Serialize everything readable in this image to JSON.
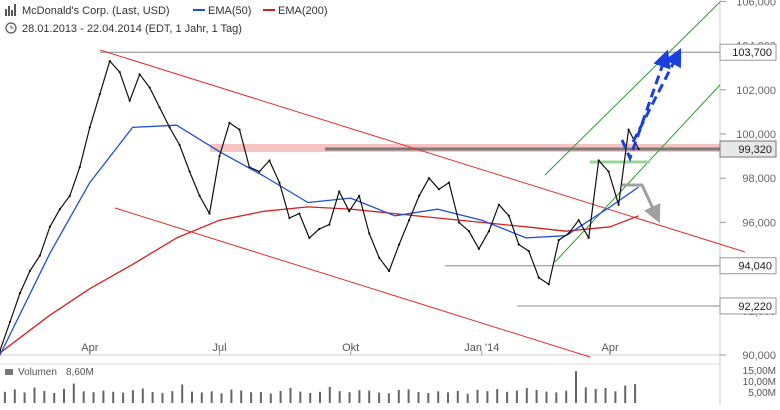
{
  "header": {
    "title": "McDonald's Corp. (Last, USD)",
    "legend": [
      {
        "label": "EMA(50)",
        "color": "#1f4fd8"
      },
      {
        "label": "EMA(200)",
        "color": "#d62020"
      }
    ],
    "date_range": "28.01.2013 - 22.04.2014 (EDT, 1 Jahr, 1 Tag)",
    "volume_label": "Volumen",
    "volume_value": "8,60M"
  },
  "colors": {
    "price": "#111111",
    "ema50": "#1f4fd8",
    "ema200": "#d62020",
    "channel_red": "#e23030",
    "channel_green": "#2e9b2e",
    "resistance_band": "#f4b8b8",
    "support_line": "#8a8a8a",
    "projection_blue": "#1a3fe0",
    "projection_gray": "#a0a0a0",
    "volume": "#666666"
  },
  "chart_data": {
    "type": "line",
    "title": "McDonald's Corp. (Last, USD)",
    "x_tick_labels": [
      "Apr",
      "Jul",
      "Okt",
      "Jan '14",
      "Apr"
    ],
    "y_tick_labels": [
      "90,000",
      "92,000",
      "94,000",
      "96,000",
      "98,000",
      "100,000",
      "102,000",
      "104,000",
      "106,000"
    ],
    "ylim": [
      90,
      106
    ],
    "grid": false,
    "legend_position": "top-left",
    "price_marker": {
      "label": "99,320",
      "value": 99.32
    },
    "level_labels": [
      {
        "label": "103,700",
        "value": 103.7
      },
      {
        "label": "94,040",
        "value": 94.04
      },
      {
        "label": "92,220",
        "value": 92.22
      }
    ],
    "series": [
      {
        "name": "McDonald's Corp. (Last, USD)",
        "x": [
          "2013-01-28",
          "2013-02-04",
          "2013-02-11",
          "2013-02-18",
          "2013-02-25",
          "2013-03-04",
          "2013-03-11",
          "2013-03-18",
          "2013-03-25",
          "2013-04-01",
          "2013-04-08",
          "2013-04-15",
          "2013-04-22",
          "2013-04-29",
          "2013-05-06",
          "2013-05-13",
          "2013-05-20",
          "2013-05-27",
          "2013-06-03",
          "2013-06-10",
          "2013-06-17",
          "2013-06-24",
          "2013-07-01",
          "2013-07-08",
          "2013-07-15",
          "2013-07-22",
          "2013-07-29",
          "2013-08-05",
          "2013-08-12",
          "2013-08-19",
          "2013-08-26",
          "2013-09-02",
          "2013-09-09",
          "2013-09-16",
          "2013-09-23",
          "2013-09-30",
          "2013-10-07",
          "2013-10-14",
          "2013-10-21",
          "2013-10-28",
          "2013-11-04",
          "2013-11-11",
          "2013-11-18",
          "2013-11-25",
          "2013-12-02",
          "2013-12-09",
          "2013-12-16",
          "2013-12-23",
          "2013-12-30",
          "2014-01-06",
          "2014-01-13",
          "2014-01-20",
          "2014-01-27",
          "2014-02-03",
          "2014-02-10",
          "2014-02-17",
          "2014-02-24",
          "2014-03-03",
          "2014-03-10",
          "2014-03-17",
          "2014-03-24",
          "2014-03-31",
          "2014-04-07",
          "2014-04-14",
          "2014-04-21"
        ],
        "values": [
          90.2,
          91.5,
          92.8,
          93.8,
          94.5,
          95.8,
          96.6,
          97.2,
          98.5,
          100.3,
          101.8,
          103.3,
          102.8,
          101.5,
          102.7,
          102.1,
          101.2,
          100.3,
          99.5,
          98.3,
          97.2,
          96.4,
          99.0,
          100.5,
          100.2,
          98.5,
          98.3,
          98.8,
          97.8,
          96.2,
          96.4,
          95.3,
          95.7,
          95.9,
          97.4,
          96.5,
          97.2,
          95.5,
          94.4,
          93.8,
          95.0,
          96.1,
          97.2,
          98.0,
          97.5,
          97.8,
          96.0,
          95.6,
          94.8,
          95.6,
          96.8,
          96.3,
          95.0,
          94.7,
          93.5,
          93.2,
          95.2,
          95.5,
          96.1,
          95.3,
          98.8,
          98.3,
          96.8,
          100.2,
          99.32
        ]
      },
      {
        "name": "EMA(50)",
        "x": [
          "2013-01-28",
          "2013-03-04",
          "2013-04-01",
          "2013-05-01",
          "2013-06-01",
          "2013-07-01",
          "2013-08-01",
          "2013-09-01",
          "2013-10-01",
          "2013-11-01",
          "2013-12-01",
          "2014-01-01",
          "2014-02-01",
          "2014-03-01",
          "2014-04-01",
          "2014-04-21"
        ],
        "values": [
          90.0,
          94.6,
          97.8,
          100.3,
          100.4,
          99.2,
          98.1,
          96.9,
          97.1,
          96.3,
          96.6,
          96.1,
          95.3,
          95.4,
          96.7,
          97.6
        ]
      },
      {
        "name": "EMA(200)",
        "x": [
          "2013-01-28",
          "2013-03-04",
          "2013-04-01",
          "2013-05-01",
          "2013-06-01",
          "2013-07-01",
          "2013-08-01",
          "2013-09-01",
          "2013-10-01",
          "2013-11-01",
          "2013-12-01",
          "2014-01-01",
          "2014-02-01",
          "2014-03-01",
          "2014-04-01",
          "2014-04-21"
        ],
        "values": [
          90.1,
          91.8,
          93.0,
          94.1,
          95.3,
          96.1,
          96.5,
          96.7,
          96.6,
          96.4,
          96.2,
          96.0,
          95.8,
          95.6,
          95.8,
          96.3
        ]
      }
    ],
    "volume": {
      "tick_labels": [
        "15,00M",
        "10,00M",
        "5,00M"
      ],
      "values": [
        5.1,
        6.2,
        4.8,
        7.0,
        5.5,
        4.6,
        6.4,
        8.8,
        5.3,
        4.9,
        5.6,
        5.1,
        4.7,
        5.8,
        6.6,
        5.0,
        4.5,
        5.4,
        8.4,
        5.2,
        4.8,
        5.3,
        4.4,
        6.1,
        5.7,
        4.9,
        5.0,
        4.3,
        5.5,
        6.9,
        5.2,
        4.6,
        5.1,
        7.3,
        5.4,
        4.9,
        5.8,
        5.6,
        4.7,
        4.4,
        5.9,
        6.2,
        5.0,
        4.6,
        5.3,
        4.8,
        5.5,
        4.2,
        6.0,
        5.4,
        6.3,
        5.1,
        5.7,
        6.8,
        5.9,
        5.2,
        4.8,
        5.6,
        14.5,
        7.1,
        6.4,
        6.8,
        5.3,
        7.9,
        8.6
      ]
    }
  }
}
